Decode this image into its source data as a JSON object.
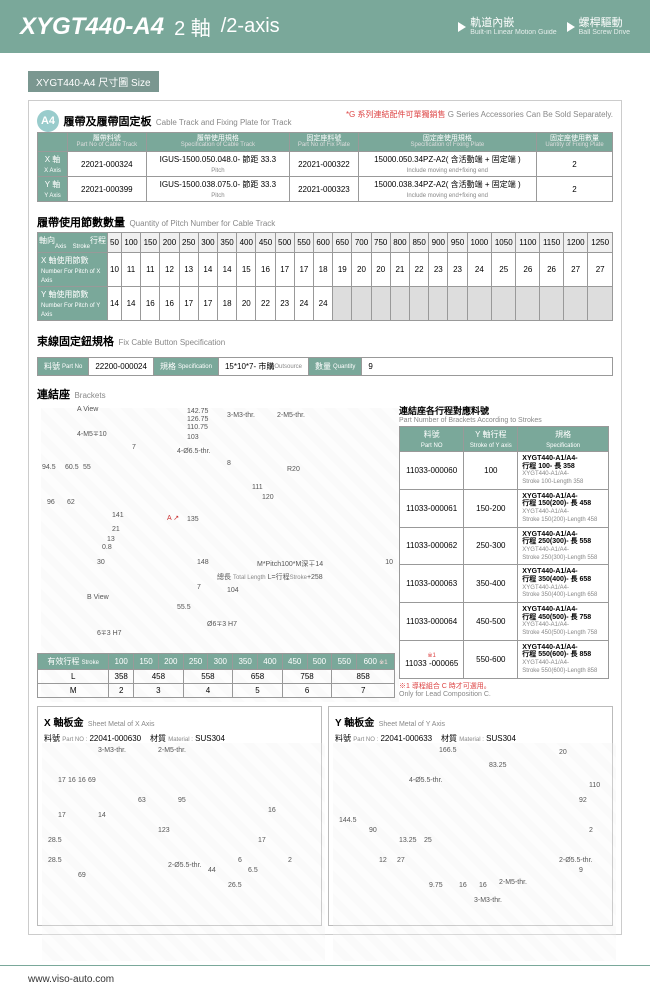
{
  "header": {
    "model": "XYGT440-A4",
    "axis_zh": "2 軸",
    "axis_en": "/2-axis",
    "feat1": "軌道內嵌",
    "feat1_en": "Built-in Linear Motion Guide",
    "feat2": "螺桿驅動",
    "feat2_en": "Ball Screw Drive"
  },
  "size_tag": "XYGT440-A4 尺寸圖",
  "size_tag_en": "Size",
  "a4_badge": "A4",
  "sec1": {
    "title": "履帶及履帶固定板",
    "title_en": "Cable Track and Fixing Plate for Track",
    "note": "*G 系列連結配件可單獨銷售",
    "note_en": "G Series Accessories Can Be Sold Separately.",
    "headers": [
      "軸向",
      "履帶料號",
      "履帶使用規格",
      "固定座料號",
      "固定座使用規格",
      "固定座使用數量"
    ],
    "headers_en": [
      "",
      "Part No of Cable Track",
      "Specification of Cable Track",
      "Part No of Fix Plate",
      "Specification of Fixing Plate",
      "Uantity of Fixing Plate"
    ],
    "rows": [
      {
        "axis": "X 軸",
        "axis_en": "X Axis",
        "pn": "22021-000324",
        "spec": "IGUS-1500.050.048.0- 節距 33.3",
        "fpn": "22021-000322",
        "fspec": "15000.050.34PZ-A2( 含活動端 + 固定端 )",
        "qty": "2"
      },
      {
        "axis": "Y 軸",
        "axis_en": "Y Axis",
        "pn": "22021-000399",
        "spec": "IGUS-1500.038.075.0- 節距 33.3",
        "fpn": "22021-000323",
        "fspec": "15000.038.34PZ-A2( 含活動端 + 固定端 )",
        "qty": "2"
      }
    ],
    "pitch_en": "Pitch",
    "incl_en": "Include moving end+fixing end"
  },
  "sec2": {
    "title": "履帶使用節數數量",
    "title_en": "Quantity of Pitch Number for Cable Track",
    "axis_hdr": "軸向",
    "stroke_hdr": "行程",
    "axis_en": "Axis",
    "stroke_en": "Stroke",
    "strokes": [
      "50",
      "100",
      "150",
      "200",
      "250",
      "300",
      "350",
      "400",
      "450",
      "500",
      "550",
      "600",
      "650",
      "700",
      "750",
      "800",
      "850",
      "900",
      "950",
      "1000",
      "1050",
      "1100",
      "1150",
      "1200",
      "1250"
    ],
    "rowX": {
      "label": "X 軸使用節數",
      "en": "Number For Pitch of X Axis",
      "vals": [
        "10",
        "11",
        "11",
        "12",
        "13",
        "14",
        "14",
        "15",
        "16",
        "17",
        "17",
        "18",
        "19",
        "20",
        "20",
        "21",
        "22",
        "23",
        "23",
        "24",
        "25",
        "26",
        "26",
        "27",
        "27"
      ]
    },
    "rowY": {
      "label": "Y 軸使用節數",
      "en": "Number For Pitch of Y Axis",
      "vals": [
        "14",
        "14",
        "16",
        "16",
        "17",
        "17",
        "18",
        "20",
        "22",
        "23",
        "24",
        "24",
        "",
        "",
        "",
        "",
        "",
        "",
        "",
        "",
        "",
        "",
        "",
        "",
        ""
      ]
    }
  },
  "sec3": {
    "title": "束線固定鈕規格",
    "title_en": "Fix Cable Button Specification",
    "pn_lbl": "料號",
    "pn_en": "Part No",
    "pn": "22200-000024",
    "spec_lbl": "規格",
    "spec_en": "Specification",
    "spec": "15*10*7- 市購",
    "spec_out": "Outsource",
    "qty_lbl": "數量",
    "qty_en": "Quantity",
    "qty": "9"
  },
  "brackets": {
    "title": "連結座",
    "title_en": "Brackets",
    "aview": "A View",
    "bview": "B View",
    "stroke_title": "連結座各行程對應料號",
    "stroke_title_en": "Part Number of Brackets According to Strokes",
    "col1": "料號",
    "col1_en": "Part NO",
    "col2": "Y 軸行程",
    "col2_en": "Stroke of Y axis",
    "col3": "規格",
    "col3_en": "Specification",
    "rows": [
      {
        "pn": "11033-000060",
        "s": "100",
        "spec": "XYGT440-A1/A4-\n行程 100- 長 358",
        "spec_en": "XYGT440-A1/A4-\nStroke 100-Length 358"
      },
      {
        "pn": "11033-000061",
        "s": "150-200",
        "spec": "XYGT440-A1/A4-\n行程 150(200)- 長 458",
        "spec_en": "XYGT440-A1/A4-\nStroke 150(200)-Length 458"
      },
      {
        "pn": "11033-000062",
        "s": "250-300",
        "spec": "XYGT440-A1/A4-\n行程 250(300)- 長 558",
        "spec_en": "XYGT440-A1/A4-\nStroke 250(300)-Length 558"
      },
      {
        "pn": "11033-000063",
        "s": "350-400",
        "spec": "XYGT440-A1/A4-\n行程 350(400)- 長 658",
        "spec_en": "XYGT440-A1/A4-\nStroke 350(400)-Length 658"
      },
      {
        "pn": "11033-000064",
        "s": "450-500",
        "spec": "XYGT440-A1/A4-\n行程 450(500)- 長 758",
        "spec_en": "XYGT440-A1/A4-\nStroke 450(500)-Length 758"
      },
      {
        "pn": "11033 -000065",
        "s": "550-600",
        "spec": "XYGT440-A1/A4-\n行程 550(600)- 長 858",
        "spec_en": "XYGT440-A1/A4-\nStroke 550(600)-Length 858",
        "note": "※1"
      }
    ],
    "footnote": "※1 導程組合 C 時才可選用。",
    "footnote_en": "Only for Lead Composition C.",
    "stroke_hdr": "有效行程",
    "stroke_hdr_en": "Stroke",
    "strokes": [
      "100",
      "150",
      "200",
      "250",
      "300",
      "350",
      "400",
      "450",
      "500",
      "550",
      "600"
    ],
    "l_row": [
      "358",
      "458",
      "",
      "558",
      "",
      "658",
      "",
      "758",
      "",
      "858",
      ""
    ],
    "m_row": [
      "2",
      "3",
      "",
      "4",
      "",
      "5",
      "",
      "6",
      "",
      "7",
      ""
    ],
    "note600": "※1",
    "dims": {
      "a": "142.75",
      "b": "126.75",
      "c": "110.75",
      "d": "103",
      "e": "4-Ø6.5-thr.",
      "f": "8",
      "g": "R20",
      "h": "111",
      "i": "120",
      "j": "135",
      "k": "148",
      "l": "M*Pitch100*M深∓14",
      "m": "總長",
      "m_en": "Total Length",
      "n": "L=行程",
      "n_en": "Stroke",
      "o": "+258",
      "p": "104",
      "q": "7",
      "r": "55.5",
      "s": "Ø6∓3 H7",
      "bv": "6∓3 H7",
      "xa": "4-M5∓10",
      "xb": "7",
      "xc": "94.5",
      "xd": "60.5",
      "xe": "55",
      "xf": "96",
      "xg": "62",
      "xh": "141",
      "xi": "21",
      "xj": "13",
      "xk": "0.8",
      "xl": "30",
      "ta": "3-M3-thr.",
      "tb": "2-M5-thr.",
      "val10": "10"
    }
  },
  "sheetX": {
    "title": "X 軸板金",
    "title_en": "Sheet Metal of X Axis",
    "pn_lbl": "料號",
    "pn_en": "Part NO :",
    "pn": "22041-000630",
    "mat_lbl": "材質",
    "mat_en": "Material :",
    "mat": "SUS304",
    "dims": [
      "3-M3-thr.",
      "2-M5-thr.",
      "17",
      "16",
      "16",
      "69",
      "17",
      "14",
      "63",
      "95",
      "28.5",
      "123",
      "69",
      "28.5",
      "2-Ø5.5-thr.",
      "44",
      "6",
      "6.5",
      "17",
      "16",
      "26.5",
      "2"
    ]
  },
  "sheetY": {
    "title": "Y 軸板金",
    "title_en": "Sheet Metal of Y Axis",
    "pn_lbl": "料號",
    "pn_en": "Part NO :",
    "pn": "22041-000633",
    "mat_lbl": "材質",
    "mat_en": "Material :",
    "mat": "SUS304",
    "dims": [
      "166.5",
      "20",
      "83.25",
      "144.5",
      "90",
      "13.25",
      "25",
      "12",
      "27",
      "4-Ø5.5-thr.",
      "9",
      "9.75",
      "16",
      "16",
      "2-M5-thr.",
      "3-M3-thr.",
      "2",
      "2-Ø5.5-thr.",
      "92",
      "110"
    ]
  },
  "footer": "www.viso-auto.com"
}
